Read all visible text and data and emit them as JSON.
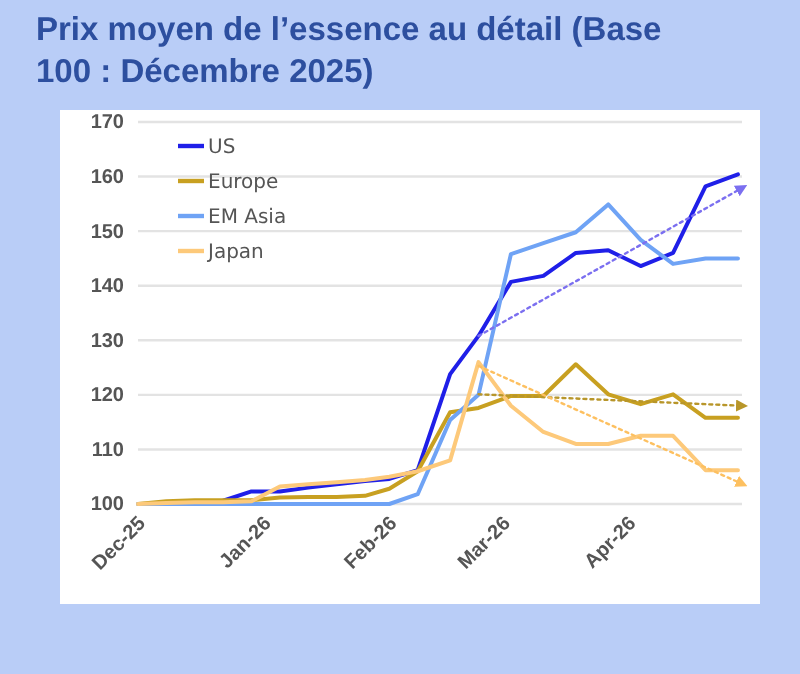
{
  "chart_data": {
    "type": "line",
    "title": "Prix moyen de l’essence au détail (Base 100 : Décembre 2025)",
    "x": [
      "2025-12-01",
      "2025-12-08",
      "2025-12-15",
      "2025-12-22",
      "2025-12-29",
      "2026-01-05",
      "2026-01-12",
      "2026-01-19",
      "2026-01-26",
      "2026-02-01",
      "2026-02-08",
      "2026-02-16",
      "2026-02-23",
      "2026-03-03",
      "2026-03-11",
      "2026-03-19",
      "2026-03-27",
      "2026-04-04",
      "2026-04-12",
      "2026-04-20",
      "2026-04-28"
    ],
    "series": [
      {
        "name": "US",
        "color": "#1f1fe8",
        "values": [
          null,
          null,
          null,
          100.6,
          102.3,
          102.3,
          103,
          103.6,
          104.2,
          104.6,
          106.2,
          123.8,
          130.8,
          140.7,
          141.8,
          146,
          146.5,
          143.6,
          146,
          158.2,
          160.4
        ]
      },
      {
        "name": "Europe",
        "color": "#c8a021",
        "values": [
          100,
          100.5,
          100.7,
          100.7,
          100.7,
          101.2,
          101.3,
          101.3,
          101.5,
          102.8,
          106,
          116.8,
          117.6,
          119.8,
          119.8,
          125.6,
          120.1,
          118.3,
          120.1,
          115.8,
          115.8
        ]
      },
      {
        "name": "EM Asia",
        "color": "#6fa3f5",
        "values": [
          100,
          100,
          100,
          100,
          100,
          100,
          100,
          100,
          100,
          100,
          101.8,
          115.4,
          120,
          145.8,
          147.8,
          149.8,
          154.9,
          148.4,
          144,
          145,
          145
        ]
      },
      {
        "name": "Japan",
        "color": "#fdc97a",
        "values": [
          100,
          100.2,
          100.3,
          100.3,
          100.5,
          103.2,
          103.6,
          104,
          104.4,
          105,
          106,
          108,
          126,
          118,
          113.2,
          111,
          111,
          112.5,
          112.5,
          106.2,
          106.2
        ]
      },
      {
        "color": "#7b6ff0",
        "x": [
          "2026-02-23",
          "2026-04-29"
        ],
        "values": [
          130.8,
          157.9
        ],
        "line_style": "dotted"
      },
      {
        "color": "#b8962a",
        "x": [
          "2026-02-23",
          "2026-04-29"
        ],
        "values": [
          120.1,
          118
        ],
        "line_style": "dotted"
      },
      {
        "color": "#fdc060",
        "x": [
          "2026-02-23",
          "2026-04-29"
        ],
        "values": [
          125.3,
          103.7
        ],
        "line_style": "dotted"
      }
    ],
    "xlim": [
      "2025-12-01",
      "2026-04-29"
    ],
    "xticks": [
      {
        "value": "2025-12-01",
        "label": "Dec-25"
      },
      {
        "value": "2026-01-01",
        "label": "Jan-26"
      },
      {
        "value": "2026-02-01",
        "label": "Feb-26"
      },
      {
        "value": "2026-03-01",
        "label": "Mar-26"
      },
      {
        "value": "2026-04-01",
        "label": "Apr-26"
      }
    ],
    "ylim": [
      100,
      170
    ],
    "yticks": [
      100,
      110,
      120,
      130,
      140,
      150,
      160,
      170
    ],
    "grid": "y",
    "legend": "top left",
    "line_style": "solid",
    "marker": "none"
  }
}
